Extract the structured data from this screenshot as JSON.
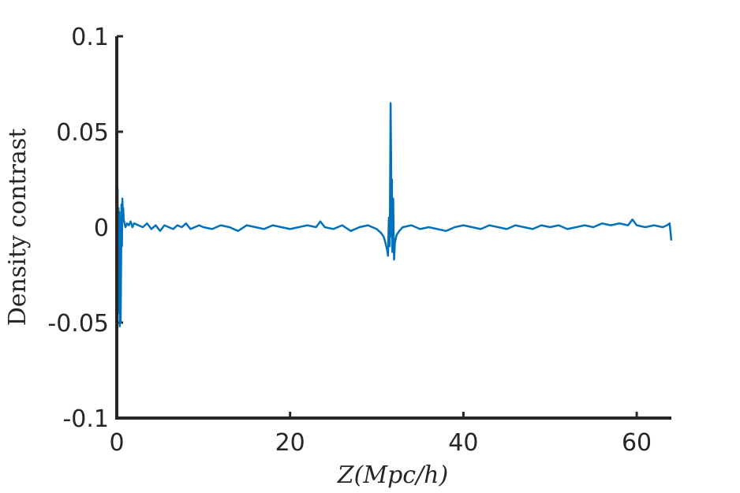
{
  "colors": {
    "series": "#0072BD",
    "axis": "#262626",
    "background": "#ffffff"
  },
  "chart_data": {
    "type": "line",
    "title": "",
    "xlabel": "Z(Mpc/h)",
    "ylabel": "Density contrast",
    "xlim": [
      0,
      64
    ],
    "ylim": [
      -0.1,
      0.1
    ],
    "xticks": [
      0,
      20,
      40,
      60
    ],
    "xtick_labels": [
      "0",
      "20",
      "40",
      "60"
    ],
    "yticks": [
      -0.1,
      -0.05,
      0,
      0.05,
      0.1
    ],
    "ytick_labels": [
      "-0.1",
      "-0.05",
      "0",
      "0.05",
      "0.1"
    ],
    "grid": false,
    "legend": "none",
    "series": [
      {
        "points": [
          [
            0,
            0.029
          ],
          [
            0.05,
            -0.015
          ],
          [
            0.1,
            0.02
          ],
          [
            0.15,
            -0.03
          ],
          [
            0.2,
            0.01
          ],
          [
            0.25,
            -0.045
          ],
          [
            0.3,
            0.008
          ],
          [
            0.35,
            -0.052
          ],
          [
            0.4,
            0.004
          ],
          [
            0.45,
            -0.05
          ],
          [
            0.5,
            -0.02
          ],
          [
            0.55,
            0.012
          ],
          [
            0.6,
            -0.01
          ],
          [
            0.65,
            0.015
          ],
          [
            0.7,
            0.006
          ],
          [
            0.75,
            0.01
          ],
          [
            0.8,
            0.004
          ],
          [
            0.9,
            0.002
          ],
          [
            1.0,
            0.0
          ],
          [
            1.2,
            0.002
          ],
          [
            1.4,
            0.001
          ],
          [
            1.6,
            0.003
          ],
          [
            1.8,
            0.0
          ],
          [
            2.0,
            0.002
          ],
          [
            2.5,
            0.001
          ],
          [
            3.0,
            0.0
          ],
          [
            3.5,
            0.002
          ],
          [
            4.0,
            -0.001
          ],
          [
            4.5,
            0.001
          ],
          [
            5.0,
            -0.002
          ],
          [
            5.5,
            0.001
          ],
          [
            6.0,
            0.0
          ],
          [
            6.5,
            -0.001
          ],
          [
            7.0,
            0.001
          ],
          [
            7.5,
            0.0
          ],
          [
            8.0,
            0.002
          ],
          [
            8.5,
            -0.001
          ],
          [
            9.0,
            0.0
          ],
          [
            9.5,
            0.001
          ],
          [
            10.0,
            0.0
          ],
          [
            11.0,
            -0.001
          ],
          [
            12.0,
            0.001
          ],
          [
            13.0,
            0.0
          ],
          [
            14.0,
            -0.002
          ],
          [
            15.0,
            0.001
          ],
          [
            16.0,
            0.0
          ],
          [
            17.0,
            -0.001
          ],
          [
            18.0,
            0.001
          ],
          [
            19.0,
            0.0
          ],
          [
            20.0,
            -0.001
          ],
          [
            21.0,
            0.0
          ],
          [
            22.0,
            0.001
          ],
          [
            23.0,
            0.0
          ],
          [
            23.5,
            0.003
          ],
          [
            24.0,
            0.0
          ],
          [
            25.0,
            -0.001
          ],
          [
            26.0,
            0.001
          ],
          [
            27.0,
            -0.002
          ],
          [
            28.0,
            0.0
          ],
          [
            29.0,
            0.001
          ],
          [
            29.5,
            0.0
          ],
          [
            30.0,
            -0.001
          ],
          [
            30.5,
            -0.003
          ],
          [
            30.8,
            -0.005
          ],
          [
            31.0,
            -0.008
          ],
          [
            31.2,
            -0.012
          ],
          [
            31.3,
            -0.015
          ],
          [
            31.4,
            0.005
          ],
          [
            31.5,
            -0.01
          ],
          [
            31.55,
            0.03
          ],
          [
            31.6,
            0.065
          ],
          [
            31.65,
            0.04
          ],
          [
            31.7,
            -0.005
          ],
          [
            31.75,
            0.025
          ],
          [
            31.8,
            -0.013
          ],
          [
            31.9,
            0.015
          ],
          [
            32.0,
            -0.017
          ],
          [
            32.1,
            -0.008
          ],
          [
            32.3,
            -0.004
          ],
          [
            32.6,
            -0.002
          ],
          [
            33.0,
            0.0
          ],
          [
            34.0,
            0.001
          ],
          [
            35.0,
            -0.001
          ],
          [
            36.0,
            0.0
          ],
          [
            37.0,
            -0.001
          ],
          [
            38.0,
            -0.002
          ],
          [
            39.0,
            0.0
          ],
          [
            40.0,
            0.001
          ],
          [
            41.0,
            0.0
          ],
          [
            42.0,
            -0.001
          ],
          [
            43.0,
            0.001
          ],
          [
            44.0,
            0.0
          ],
          [
            45.0,
            -0.001
          ],
          [
            46.0,
            0.001
          ],
          [
            47.0,
            0.0
          ],
          [
            48.0,
            -0.001
          ],
          [
            49.0,
            0.001
          ],
          [
            50.0,
            0.0
          ],
          [
            51.0,
            0.001
          ],
          [
            52.0,
            -0.001
          ],
          [
            53.0,
            0.0
          ],
          [
            54.0,
            0.001
          ],
          [
            55.0,
            0.0
          ],
          [
            56.0,
            0.002
          ],
          [
            57.0,
            0.001
          ],
          [
            58.0,
            0.002
          ],
          [
            59.0,
            0.001
          ],
          [
            59.5,
            0.004
          ],
          [
            60.0,
            0.001
          ],
          [
            61.0,
            0.0
          ],
          [
            62.0,
            0.001
          ],
          [
            63.0,
            0.0
          ],
          [
            63.5,
            0.001
          ],
          [
            63.8,
            0.002
          ],
          [
            64.0,
            -0.007
          ]
        ]
      }
    ]
  }
}
